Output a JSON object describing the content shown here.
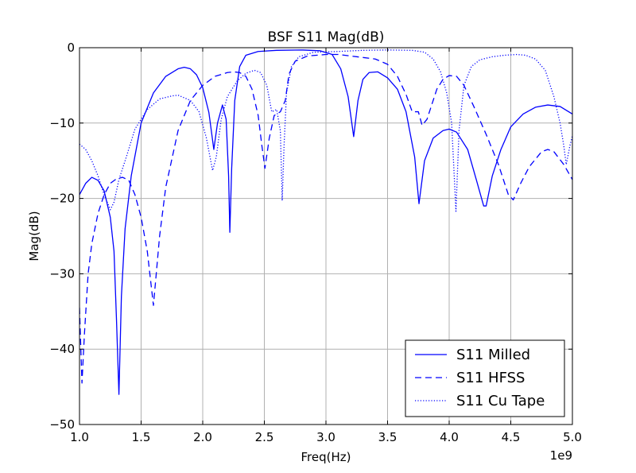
{
  "chart_data": {
    "type": "line",
    "title": "BSF S11 Mag(dB)",
    "xlabel": "Freq(Hz)",
    "ylabel": "Mag(dB)",
    "x_scale_label": "1e9",
    "xlim": [
      1.0,
      5.0
    ],
    "ylim": [
      -50,
      0
    ],
    "xticks": [
      1.0,
      1.5,
      2.0,
      2.5,
      3.0,
      3.5,
      4.0,
      4.5,
      5.0
    ],
    "xtick_labels": [
      "1.0",
      "1.5",
      "2.0",
      "2.5",
      "3.0",
      "3.5",
      "4.0",
      "4.5",
      "5.0"
    ],
    "yticks": [
      0,
      -10,
      -20,
      -30,
      -40,
      -50
    ],
    "ytick_labels": [
      "0",
      "−10",
      "−20",
      "−30",
      "−40",
      "−50"
    ],
    "grid": true,
    "legend_position": "bottom-right",
    "series_color": "#0000ff",
    "series": [
      {
        "name": "S11 Milled",
        "style": "solid",
        "points": [
          [
            1.0,
            -19.5
          ],
          [
            1.05,
            -18
          ],
          [
            1.1,
            -17.2
          ],
          [
            1.15,
            -17.6
          ],
          [
            1.2,
            -19
          ],
          [
            1.25,
            -22.5
          ],
          [
            1.28,
            -27
          ],
          [
            1.3,
            -36
          ],
          [
            1.32,
            -46
          ],
          [
            1.34,
            -33
          ],
          [
            1.37,
            -24
          ],
          [
            1.42,
            -17
          ],
          [
            1.5,
            -10
          ],
          [
            1.6,
            -6
          ],
          [
            1.7,
            -3.8
          ],
          [
            1.8,
            -2.8
          ],
          [
            1.85,
            -2.6
          ],
          [
            1.9,
            -2.8
          ],
          [
            1.95,
            -3.6
          ],
          [
            2.0,
            -5.3
          ],
          [
            2.05,
            -8.6
          ],
          [
            2.09,
            -13.5
          ],
          [
            2.12,
            -10
          ],
          [
            2.16,
            -7.6
          ],
          [
            2.19,
            -9.5
          ],
          [
            2.21,
            -17
          ],
          [
            2.22,
            -24.5
          ],
          [
            2.235,
            -16
          ],
          [
            2.26,
            -7
          ],
          [
            2.3,
            -2.5
          ],
          [
            2.35,
            -1
          ],
          [
            2.45,
            -0.5
          ],
          [
            2.6,
            -0.35
          ],
          [
            2.8,
            -0.3
          ],
          [
            2.95,
            -0.4
          ],
          [
            3.05,
            -0.9
          ],
          [
            3.12,
            -2.8
          ],
          [
            3.18,
            -6.5
          ],
          [
            3.225,
            -11.8
          ],
          [
            3.26,
            -7
          ],
          [
            3.3,
            -4.2
          ],
          [
            3.35,
            -3.3
          ],
          [
            3.42,
            -3.2
          ],
          [
            3.5,
            -4
          ],
          [
            3.58,
            -5.5
          ],
          [
            3.65,
            -8.5
          ],
          [
            3.72,
            -14.5
          ],
          [
            3.755,
            -20.7
          ],
          [
            3.8,
            -15
          ],
          [
            3.87,
            -12
          ],
          [
            3.95,
            -11
          ],
          [
            4.0,
            -10.8
          ],
          [
            4.06,
            -11.2
          ],
          [
            4.15,
            -13.5
          ],
          [
            4.22,
            -17.5
          ],
          [
            4.28,
            -21
          ],
          [
            4.3,
            -21
          ],
          [
            4.35,
            -17
          ],
          [
            4.42,
            -13.5
          ],
          [
            4.5,
            -10.5
          ],
          [
            4.6,
            -8.8
          ],
          [
            4.7,
            -7.9
          ],
          [
            4.8,
            -7.6
          ],
          [
            4.9,
            -7.8
          ],
          [
            5.0,
            -8.8
          ]
        ]
      },
      {
        "name": "S11 HFSS",
        "style": "dashed",
        "points": [
          [
            1.0,
            -34.5
          ],
          [
            1.02,
            -44.5
          ],
          [
            1.04,
            -38
          ],
          [
            1.07,
            -30
          ],
          [
            1.1,
            -26
          ],
          [
            1.15,
            -22
          ],
          [
            1.2,
            -19.5
          ],
          [
            1.25,
            -18
          ],
          [
            1.3,
            -17.4
          ],
          [
            1.35,
            -17.2
          ],
          [
            1.4,
            -17.6
          ],
          [
            1.45,
            -19.5
          ],
          [
            1.5,
            -22.5
          ],
          [
            1.55,
            -27
          ],
          [
            1.6,
            -34.2
          ],
          [
            1.65,
            -25
          ],
          [
            1.7,
            -18.5
          ],
          [
            1.8,
            -11
          ],
          [
            1.9,
            -7
          ],
          [
            2.0,
            -5
          ],
          [
            2.1,
            -3.8
          ],
          [
            2.2,
            -3.3
          ],
          [
            2.25,
            -3.2
          ],
          [
            2.3,
            -3.3
          ],
          [
            2.35,
            -3.8
          ],
          [
            2.4,
            -5.5
          ],
          [
            2.45,
            -9
          ],
          [
            2.48,
            -13
          ],
          [
            2.505,
            -16
          ],
          [
            2.54,
            -12
          ],
          [
            2.58,
            -9
          ],
          [
            2.63,
            -8.5
          ],
          [
            2.67,
            -7
          ],
          [
            2.7,
            -3.5
          ],
          [
            2.75,
            -1.8
          ],
          [
            2.85,
            -1.1
          ],
          [
            3.0,
            -0.9
          ],
          [
            3.1,
            -0.9
          ],
          [
            3.2,
            -1.1
          ],
          [
            3.3,
            -1.3
          ],
          [
            3.4,
            -1.5
          ],
          [
            3.5,
            -2.2
          ],
          [
            3.58,
            -3.8
          ],
          [
            3.65,
            -6.2
          ],
          [
            3.7,
            -8.5
          ],
          [
            3.75,
            -8.5
          ],
          [
            3.78,
            -10.3
          ],
          [
            3.82,
            -9.5
          ],
          [
            3.9,
            -5.5
          ],
          [
            3.95,
            -4.2
          ],
          [
            4.0,
            -3.7
          ],
          [
            4.06,
            -3.8
          ],
          [
            4.12,
            -5
          ],
          [
            4.2,
            -7.8
          ],
          [
            4.3,
            -11.5
          ],
          [
            4.4,
            -15.5
          ],
          [
            4.48,
            -19.5
          ],
          [
            4.52,
            -20.2
          ],
          [
            4.58,
            -18
          ],
          [
            4.65,
            -15.8
          ],
          [
            4.75,
            -13.8
          ],
          [
            4.8,
            -13.5
          ],
          [
            4.85,
            -13.8
          ],
          [
            4.93,
            -15.5
          ],
          [
            5.0,
            -17.5
          ]
        ]
      },
      {
        "name": "S11 Cu Tape",
        "style": "dotted",
        "points": [
          [
            1.0,
            -12.8
          ],
          [
            1.05,
            -13.5
          ],
          [
            1.1,
            -15
          ],
          [
            1.15,
            -17
          ],
          [
            1.2,
            -19.5
          ],
          [
            1.25,
            -21.5
          ],
          [
            1.28,
            -20.5
          ],
          [
            1.32,
            -17.5
          ],
          [
            1.38,
            -14.5
          ],
          [
            1.45,
            -10.8
          ],
          [
            1.55,
            -8.2
          ],
          [
            1.65,
            -6.8
          ],
          [
            1.75,
            -6.4
          ],
          [
            1.8,
            -6.3
          ],
          [
            1.9,
            -7
          ],
          [
            1.97,
            -8.5
          ],
          [
            2.03,
            -12
          ],
          [
            2.08,
            -16.3
          ],
          [
            2.11,
            -14.5
          ],
          [
            2.15,
            -9.5
          ],
          [
            2.2,
            -6.5
          ],
          [
            2.28,
            -4.4
          ],
          [
            2.35,
            -3.4
          ],
          [
            2.42,
            -3
          ],
          [
            2.47,
            -3.3
          ],
          [
            2.52,
            -5
          ],
          [
            2.56,
            -8.5
          ],
          [
            2.6,
            -8.2
          ],
          [
            2.63,
            -11
          ],
          [
            2.645,
            -20.3
          ],
          [
            2.66,
            -13
          ],
          [
            2.68,
            -6
          ],
          [
            2.72,
            -2.5
          ],
          [
            2.78,
            -1.2
          ],
          [
            2.9,
            -0.6
          ],
          [
            3.1,
            -0.5
          ],
          [
            3.3,
            -0.35
          ],
          [
            3.5,
            -0.3
          ],
          [
            3.7,
            -0.35
          ],
          [
            3.8,
            -0.6
          ],
          [
            3.87,
            -1.5
          ],
          [
            3.93,
            -3.2
          ],
          [
            3.98,
            -6
          ],
          [
            4.02,
            -10
          ],
          [
            4.055,
            -21.7
          ],
          [
            4.08,
            -11
          ],
          [
            4.12,
            -5
          ],
          [
            4.18,
            -2.5
          ],
          [
            4.25,
            -1.6
          ],
          [
            4.35,
            -1.2
          ],
          [
            4.45,
            -1
          ],
          [
            4.55,
            -0.9
          ],
          [
            4.62,
            -1
          ],
          [
            4.7,
            -1.5
          ],
          [
            4.78,
            -3
          ],
          [
            4.85,
            -6.5
          ],
          [
            4.9,
            -10
          ],
          [
            4.93,
            -13
          ],
          [
            4.95,
            -15.5
          ],
          [
            4.98,
            -13
          ],
          [
            5.0,
            -11.7
          ]
        ]
      }
    ]
  }
}
